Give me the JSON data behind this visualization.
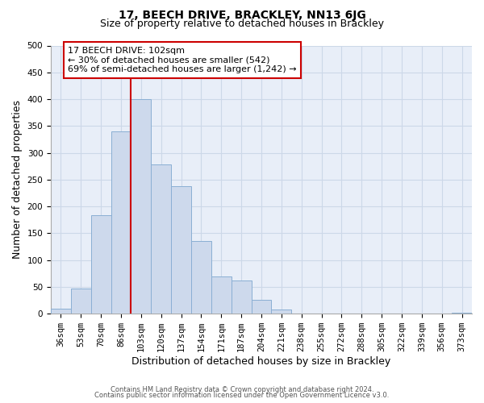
{
  "title": "17, BEECH DRIVE, BRACKLEY, NN13 6JG",
  "subtitle": "Size of property relative to detached houses in Brackley",
  "xlabel": "Distribution of detached houses by size in Brackley",
  "ylabel": "Number of detached properties",
  "bar_labels": [
    "36sqm",
    "53sqm",
    "70sqm",
    "86sqm",
    "103sqm",
    "120sqm",
    "137sqm",
    "154sqm",
    "171sqm",
    "187sqm",
    "204sqm",
    "221sqm",
    "238sqm",
    "255sqm",
    "272sqm",
    "288sqm",
    "305sqm",
    "322sqm",
    "339sqm",
    "356sqm",
    "373sqm"
  ],
  "bar_heights": [
    10,
    47,
    183,
    340,
    400,
    278,
    238,
    135,
    70,
    62,
    26,
    8,
    0,
    0,
    0,
    0,
    0,
    0,
    0,
    0,
    2
  ],
  "bar_color": "#cdd9ec",
  "bar_edge_color": "#8aafd4",
  "vline_index": 4,
  "vline_color": "#cc0000",
  "ylim": [
    0,
    500
  ],
  "yticks": [
    0,
    50,
    100,
    150,
    200,
    250,
    300,
    350,
    400,
    450,
    500
  ],
  "ann_line1": "17 BEECH DRIVE: 102sqm",
  "ann_line2": "← 30% of detached houses are smaller (542)",
  "ann_line3": "69% of semi-detached houses are larger (1,242) →",
  "annotation_box_facecolor": "#ffffff",
  "annotation_box_edgecolor": "#cc0000",
  "grid_color": "#ccd8e8",
  "bg_color": "#e8eef8",
  "footer_line1": "Contains HM Land Registry data © Crown copyright and database right 2024.",
  "footer_line2": "Contains public sector information licensed under the Open Government Licence v3.0.",
  "title_fontsize": 10,
  "subtitle_fontsize": 9,
  "axis_label_fontsize": 9,
  "tick_fontsize": 7.5,
  "ann_fontsize": 8,
  "footer_fontsize": 6
}
